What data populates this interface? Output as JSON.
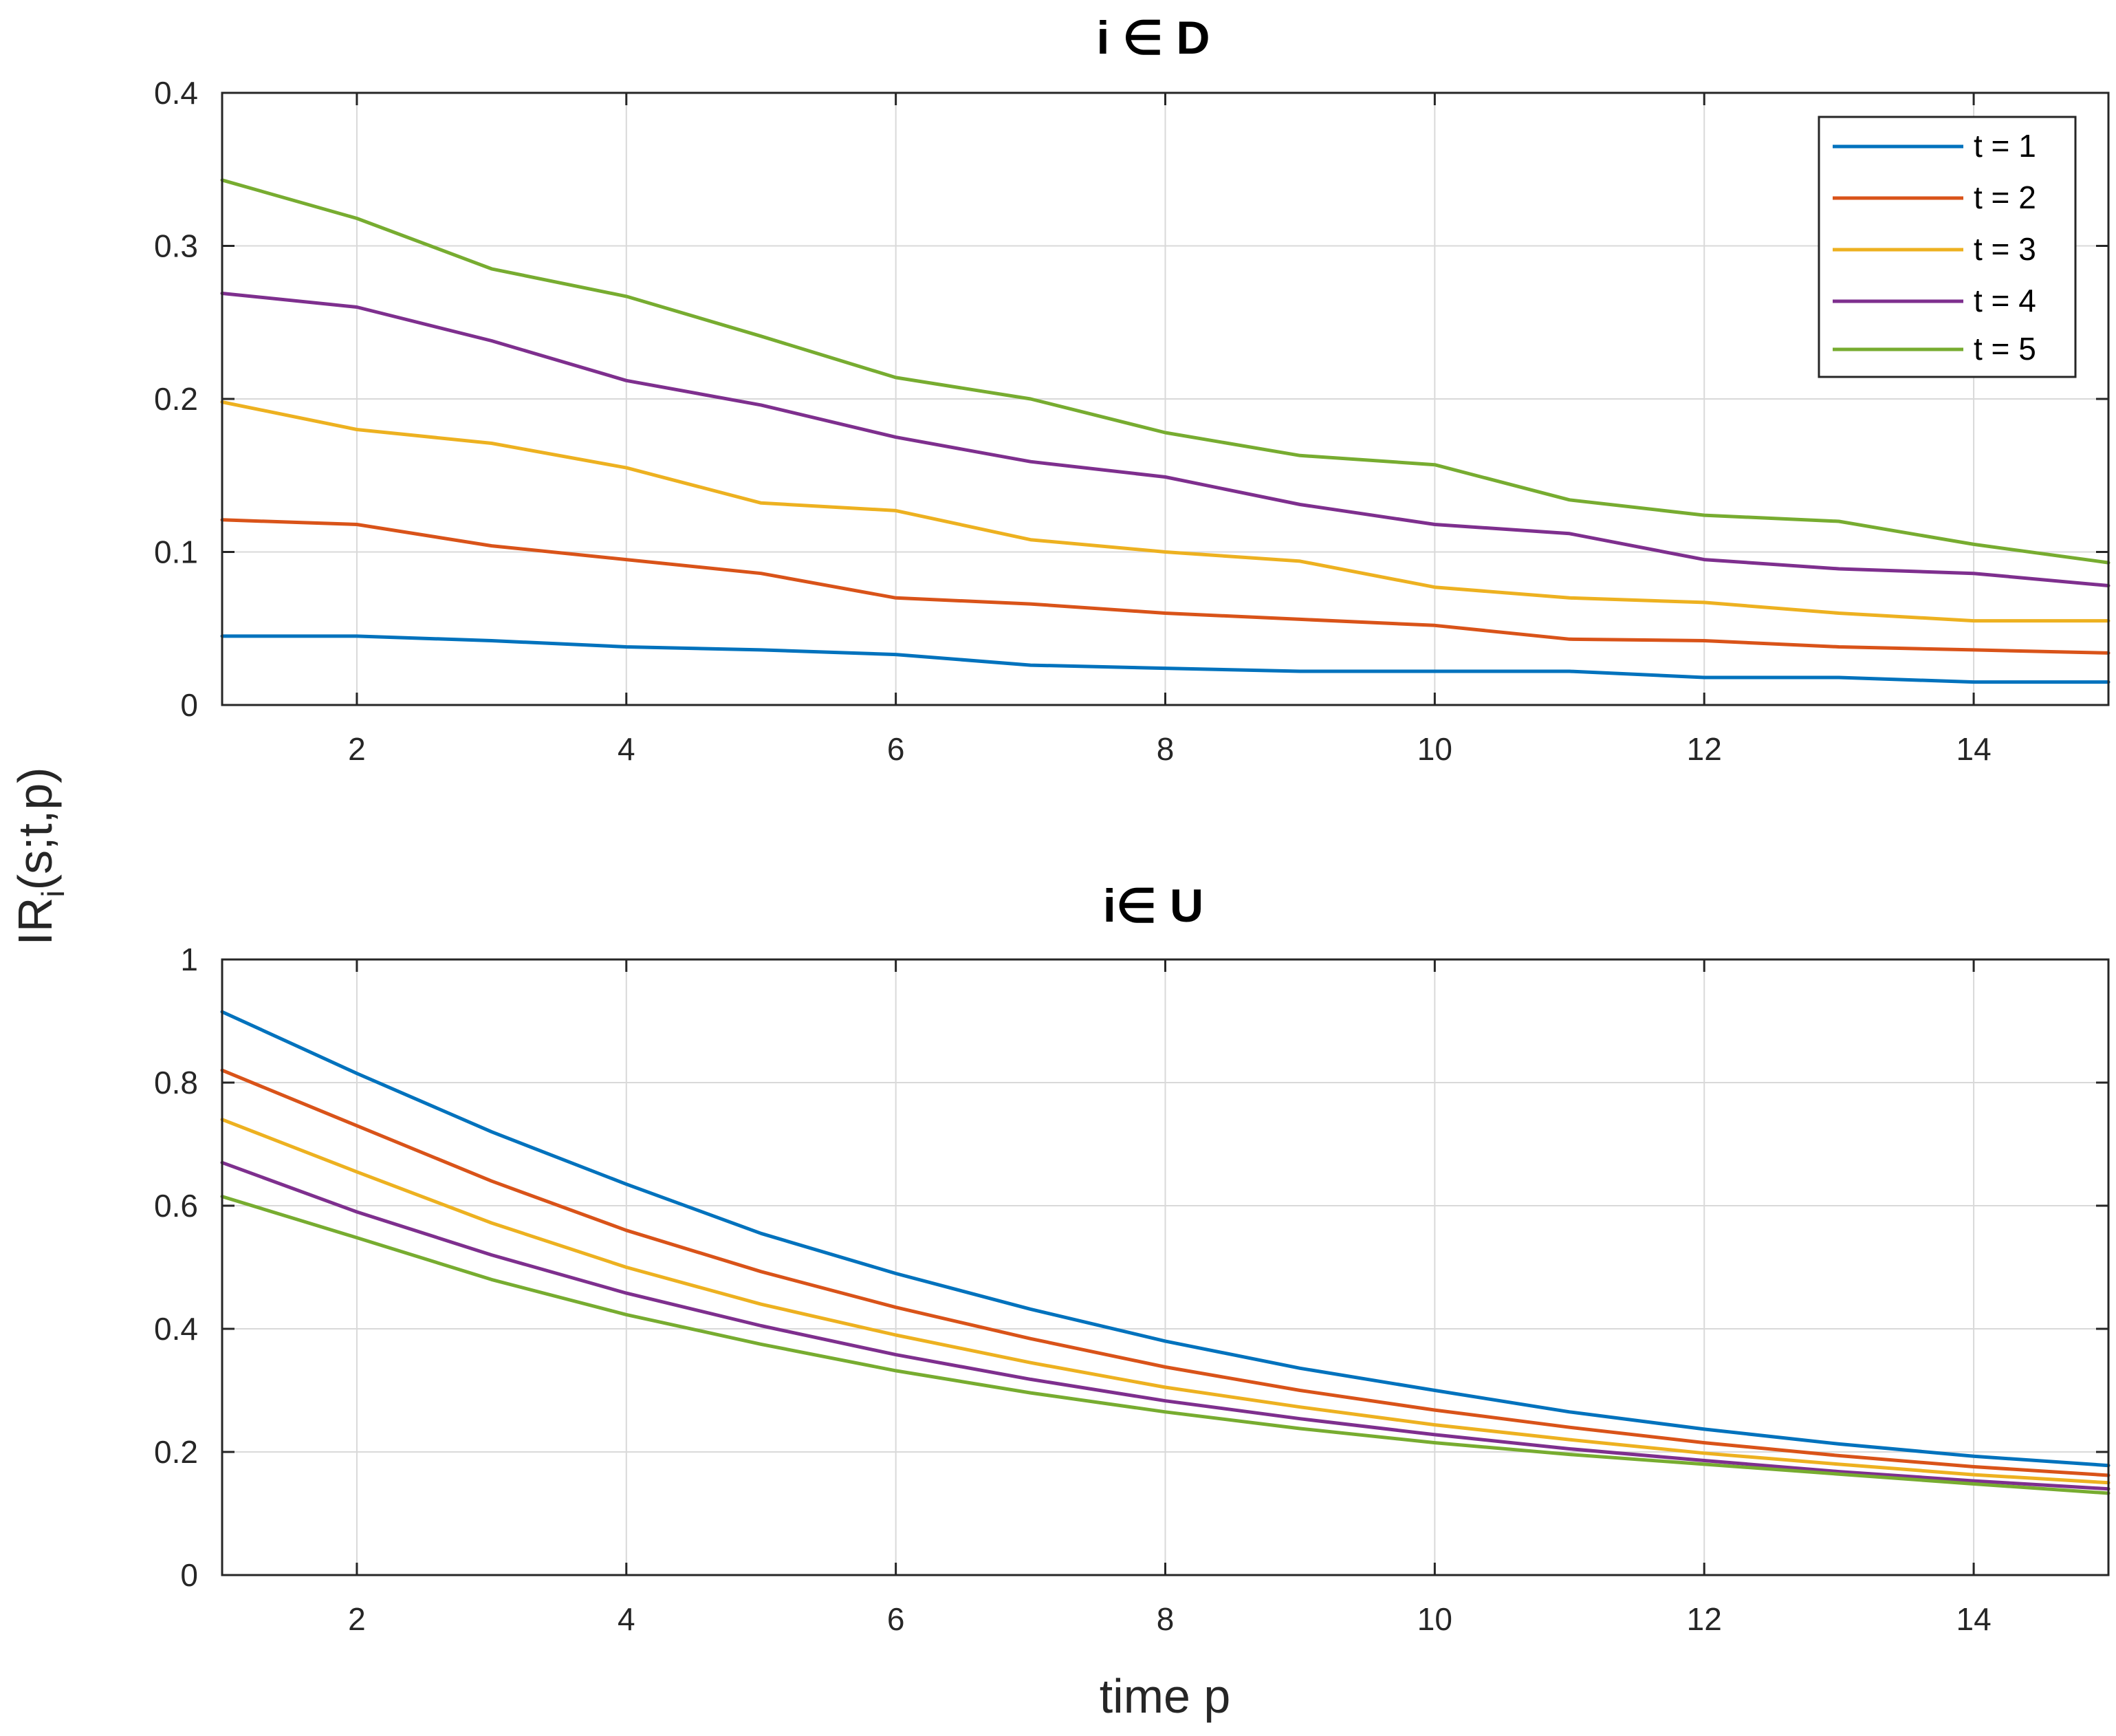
{
  "chart_data": {
    "type": "line",
    "shared_ylabel": "IR_i(s;t,p)",
    "shared_ylabel_parts": {
      "main": "IR",
      "sub": "i",
      "rest": "(s;t,p)"
    },
    "xlabel": "time p",
    "legend": {
      "placement": "top-right",
      "entries": [
        "t = 1",
        "t = 2",
        "t = 3",
        "t = 4",
        "t = 5"
      ],
      "colors": [
        "#0072BD",
        "#D95319",
        "#EDB120",
        "#7E2F8E",
        "#77AC30"
      ]
    },
    "panels": [
      {
        "title": "i ∈ D",
        "x": [
          1,
          2,
          3,
          4,
          5,
          6,
          7,
          8,
          9,
          10,
          11,
          12,
          13,
          14,
          15
        ],
        "xlim": [
          1,
          15
        ],
        "ylim": [
          0,
          0.4
        ],
        "xticks": [
          2,
          4,
          6,
          8,
          10,
          12,
          14
        ],
        "yticks": [
          0,
          0.1,
          0.2,
          0.3,
          0.4
        ],
        "ytick_labels": [
          "0",
          "0.1",
          "0.2",
          "0.3",
          "0.4"
        ],
        "grid": true,
        "series": [
          {
            "name": "t = 1",
            "values": [
              0.045,
              0.045,
              0.042,
              0.038,
              0.036,
              0.033,
              0.026,
              0.024,
              0.022,
              0.022,
              0.022,
              0.018,
              0.018,
              0.015,
              0.015
            ]
          },
          {
            "name": "t = 2",
            "values": [
              0.121,
              0.118,
              0.104,
              0.095,
              0.086,
              0.07,
              0.066,
              0.06,
              0.056,
              0.052,
              0.043,
              0.042,
              0.038,
              0.036,
              0.034
            ]
          },
          {
            "name": "t = 3",
            "values": [
              0.198,
              0.18,
              0.171,
              0.155,
              0.132,
              0.127,
              0.108,
              0.1,
              0.094,
              0.077,
              0.07,
              0.067,
              0.06,
              0.055,
              0.055
            ]
          },
          {
            "name": "t = 4",
            "values": [
              0.269,
              0.26,
              0.238,
              0.212,
              0.196,
              0.175,
              0.159,
              0.149,
              0.131,
              0.118,
              0.112,
              0.095,
              0.089,
              0.086,
              0.078
            ]
          },
          {
            "name": "t = 5",
            "values": [
              0.343,
              0.318,
              0.285,
              0.267,
              0.241,
              0.214,
              0.2,
              0.178,
              0.163,
              0.157,
              0.134,
              0.124,
              0.12,
              0.105,
              0.093
            ]
          }
        ]
      },
      {
        "title": "i∈ U",
        "x": [
          1,
          2,
          3,
          4,
          5,
          6,
          7,
          8,
          9,
          10,
          11,
          12,
          13,
          14,
          15
        ],
        "xlim": [
          1,
          15
        ],
        "ylim": [
          0,
          1
        ],
        "xticks": [
          2,
          4,
          6,
          8,
          10,
          12,
          14
        ],
        "yticks": [
          0,
          0.2,
          0.4,
          0.6,
          0.8,
          1
        ],
        "ytick_labels": [
          "0",
          "0.2",
          "0.4",
          "0.6",
          "0.8",
          "1"
        ],
        "grid": true,
        "series": [
          {
            "name": "t = 1",
            "values": [
              0.915,
              0.815,
              0.72,
              0.635,
              0.555,
              0.49,
              0.432,
              0.38,
              0.336,
              0.3,
              0.265,
              0.237,
              0.213,
              0.193,
              0.178
            ]
          },
          {
            "name": "t = 2",
            "values": [
              0.82,
              0.73,
              0.64,
              0.56,
              0.493,
              0.435,
              0.384,
              0.338,
              0.3,
              0.268,
              0.24,
              0.215,
              0.194,
              0.176,
              0.162
            ]
          },
          {
            "name": "t = 3",
            "values": [
              0.74,
              0.655,
              0.572,
              0.5,
              0.44,
              0.39,
              0.345,
              0.305,
              0.273,
              0.244,
              0.22,
              0.198,
              0.18,
              0.163,
              0.15
            ]
          },
          {
            "name": "t = 4",
            "values": [
              0.67,
              0.59,
              0.52,
              0.458,
              0.405,
              0.358,
              0.318,
              0.283,
              0.254,
              0.228,
              0.205,
              0.186,
              0.168,
              0.153,
              0.14
            ]
          },
          {
            "name": "t = 5",
            "values": [
              0.615,
              0.548,
              0.48,
              0.423,
              0.375,
              0.332,
              0.296,
              0.265,
              0.238,
              0.215,
              0.196,
              0.18,
              0.164,
              0.148,
              0.133
            ]
          }
        ]
      }
    ]
  }
}
